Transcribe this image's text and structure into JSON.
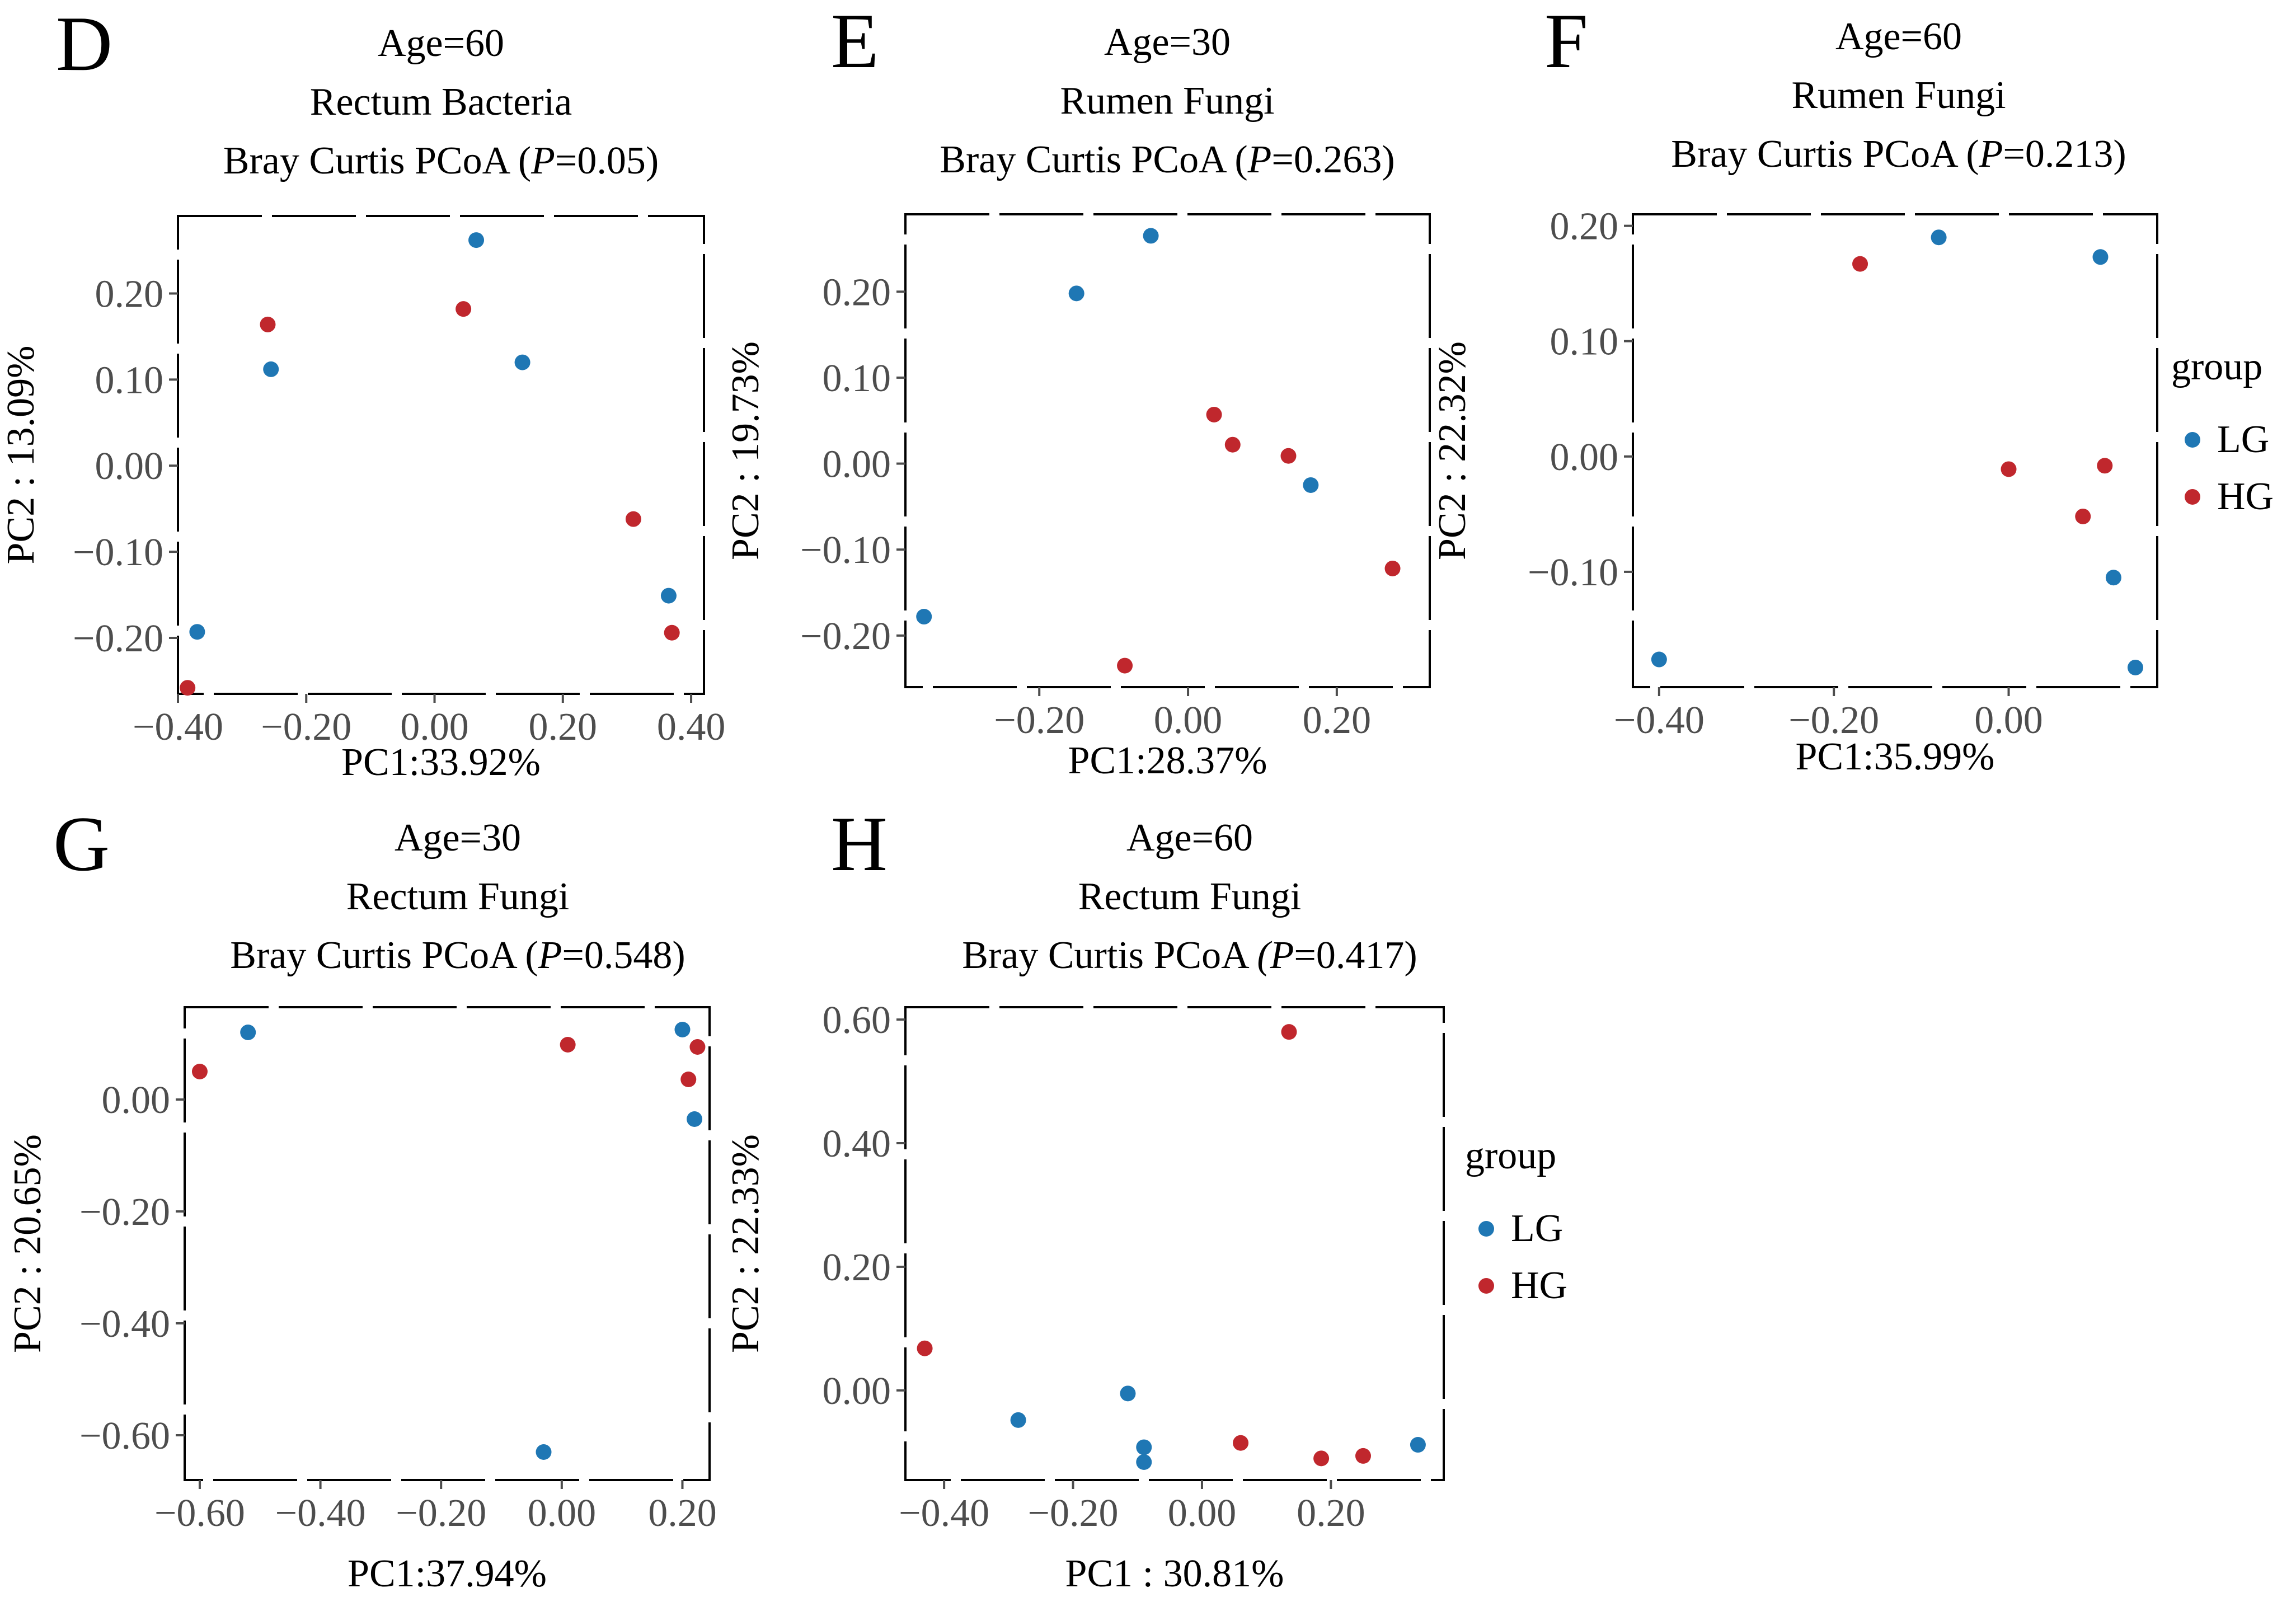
{
  "colors": {
    "LG": "#1f77b4",
    "HG": "#c0272d",
    "tick": "#4d4d4d"
  },
  "legend": {
    "title": "group",
    "items": [
      "LG",
      "HG"
    ]
  },
  "chart_data": [
    {
      "id": "D",
      "type": "scatter",
      "title": [
        "Age=60",
        "Rectum Bacteria"
      ],
      "subtitle": {
        "prefix": "Bray Curtis PCoA (",
        "p_symbol": "P",
        "p_value": "=0.05",
        "suffix": ")"
      },
      "xlabel": "PC1:33.92%",
      "ylabel": "PC2 : 13.09%",
      "xlim": [
        -0.4,
        0.42
      ],
      "ylim": [
        -0.265,
        0.29
      ],
      "xticks": [
        -0.4,
        -0.2,
        0.0,
        0.2,
        0.4
      ],
      "xtick_labels": [
        "−0.40",
        "−0.20",
        "0.00",
        "0.20",
        "0.40"
      ],
      "yticks": [
        -0.2,
        -0.1,
        0.0,
        0.1,
        0.2
      ],
      "ytick_labels": [
        "−0.20",
        "−0.10",
        "0.00",
        "0.10",
        "0.20"
      ],
      "grid": false,
      "legend": false,
      "series": [
        {
          "name": "LG",
          "points": [
            [
              0.065,
              0.262
            ],
            [
              0.137,
              0.12
            ],
            [
              -0.255,
              0.112
            ],
            [
              -0.37,
              -0.193
            ],
            [
              0.365,
              -0.151
            ]
          ]
        },
        {
          "name": "HG",
          "points": [
            [
              -0.26,
              0.164
            ],
            [
              0.045,
              0.182
            ],
            [
              0.31,
              -0.062
            ],
            [
              0.37,
              -0.194
            ],
            [
              -0.385,
              -0.258
            ]
          ]
        }
      ]
    },
    {
      "id": "E",
      "type": "scatter",
      "title": [
        "Age=30",
        "Rumen Fungi"
      ],
      "subtitle": {
        "prefix": "Bray Curtis PCoA (",
        "p_symbol": "P",
        "p_value": "=0.263",
        "suffix": ")"
      },
      "xlabel": "PC1:28.37%",
      "ylabel": "PC2 : 19.73%",
      "xlim": [
        -0.38,
        0.325
      ],
      "ylim": [
        -0.26,
        0.29
      ],
      "xticks": [
        -0.2,
        0.0,
        0.2
      ],
      "xtick_labels": [
        "−0.20",
        "0.00",
        "0.20"
      ],
      "yticks": [
        -0.2,
        -0.1,
        0.0,
        0.1,
        0.2
      ],
      "ytick_labels": [
        "−0.20",
        "−0.10",
        "0.00",
        "0.10",
        "0.20"
      ],
      "grid": false,
      "legend": false,
      "series": [
        {
          "name": "LG",
          "points": [
            [
              -0.05,
              0.265
            ],
            [
              -0.15,
              0.198
            ],
            [
              0.165,
              -0.025
            ],
            [
              -0.355,
              -0.178
            ]
          ]
        },
        {
          "name": "HG",
          "points": [
            [
              0.035,
              0.057
            ],
            [
              0.06,
              0.022
            ],
            [
              0.135,
              0.009
            ],
            [
              0.275,
              -0.122
            ],
            [
              -0.085,
              -0.235
            ]
          ]
        }
      ]
    },
    {
      "id": "F",
      "type": "scatter",
      "title": [
        "Age=60",
        "Rumen Fungi"
      ],
      "subtitle": {
        "prefix": "Bray Curtis PCoA (",
        "p_symbol": "P",
        "p_value": "=0.213",
        "suffix": ")"
      },
      "xlabel": "PC1:35.99%",
      "ylabel": "PC2 : 22.32%",
      "xlim": [
        -0.43,
        0.17
      ],
      "ylim": [
        -0.2,
        0.21
      ],
      "xticks": [
        -0.4,
        -0.2,
        0.0
      ],
      "xtick_labels": [
        "−0.40",
        "−0.20",
        "0.00"
      ],
      "yticks": [
        -0.1,
        0.0,
        0.1,
        0.2
      ],
      "ytick_labels": [
        "−0.10",
        "0.00",
        "0.10",
        "0.20"
      ],
      "grid": false,
      "legend": true,
      "series": [
        {
          "name": "LG",
          "points": [
            [
              -0.08,
              0.19
            ],
            [
              0.105,
              0.173
            ],
            [
              0.12,
              -0.105
            ],
            [
              0.145,
              -0.183
            ],
            [
              -0.4,
              -0.176
            ]
          ]
        },
        {
          "name": "HG",
          "points": [
            [
              -0.17,
              0.167
            ],
            [
              0.0,
              -0.011
            ],
            [
              0.11,
              -0.008
            ],
            [
              0.085,
              -0.052
            ]
          ]
        }
      ]
    },
    {
      "id": "G",
      "type": "scatter",
      "title": [
        "Age=30",
        "Rectum Fungi"
      ],
      "subtitle": {
        "prefix": "Bray Curtis PCoA (",
        "p_symbol": "P",
        "p_value": "=0.548",
        "suffix": ")"
      },
      "xlabel": "PC1:37.94%",
      "ylabel": "PC2 : 20.65%",
      "xlim": [
        -0.625,
        0.245
      ],
      "ylim": [
        -0.68,
        0.165
      ],
      "xticks": [
        -0.6,
        -0.4,
        -0.2,
        0.0,
        0.2
      ],
      "xtick_labels": [
        "−0.60",
        "−0.40",
        "−0.20",
        "0.00",
        "0.20"
      ],
      "yticks": [
        -0.6,
        -0.4,
        -0.2,
        0.0
      ],
      "ytick_labels": [
        "−0.60",
        "−0.40",
        "−0.20",
        "0.00"
      ],
      "grid": false,
      "legend": false,
      "series": [
        {
          "name": "LG",
          "points": [
            [
              -0.52,
              0.12
            ],
            [
              0.2,
              0.125
            ],
            [
              0.22,
              -0.035
            ],
            [
              -0.03,
              -0.63
            ]
          ]
        },
        {
          "name": "HG",
          "points": [
            [
              -0.6,
              0.05
            ],
            [
              0.01,
              0.098
            ],
            [
              0.225,
              0.094
            ],
            [
              0.21,
              0.036
            ]
          ]
        }
      ]
    },
    {
      "id": "H",
      "type": "scatter",
      "title": [
        "Age=60",
        "Rectum Fungi"
      ],
      "subtitle": {
        "prefix": "Bray Curtis PCoA ",
        "p_symbol": "(P",
        "p_value": "=0.417",
        "suffix": ")"
      },
      "xlabel": "PC1 : 30.81%",
      "ylabel": "PC2 : 22.33%",
      "xlim": [
        -0.46,
        0.375
      ],
      "ylim": [
        -0.145,
        0.62
      ],
      "xticks": [
        -0.4,
        -0.2,
        0.0,
        0.2
      ],
      "xtick_labels": [
        "−0.40",
        "−0.20",
        "0.00",
        "0.20"
      ],
      "yticks": [
        0.0,
        0.2,
        0.4,
        0.6
      ],
      "ytick_labels": [
        "0.00",
        "0.20",
        "0.40",
        "0.60"
      ],
      "grid": false,
      "legend": true,
      "series": [
        {
          "name": "LG",
          "points": [
            [
              -0.285,
              -0.048
            ],
            [
              -0.115,
              -0.005
            ],
            [
              -0.09,
              -0.092
            ],
            [
              -0.09,
              -0.116
            ],
            [
              0.335,
              -0.088
            ]
          ]
        },
        {
          "name": "HG",
          "points": [
            [
              -0.43,
              0.068
            ],
            [
              0.135,
              0.58
            ],
            [
              0.06,
              -0.085
            ],
            [
              0.185,
              -0.11
            ],
            [
              0.25,
              -0.106
            ]
          ]
        }
      ]
    }
  ]
}
